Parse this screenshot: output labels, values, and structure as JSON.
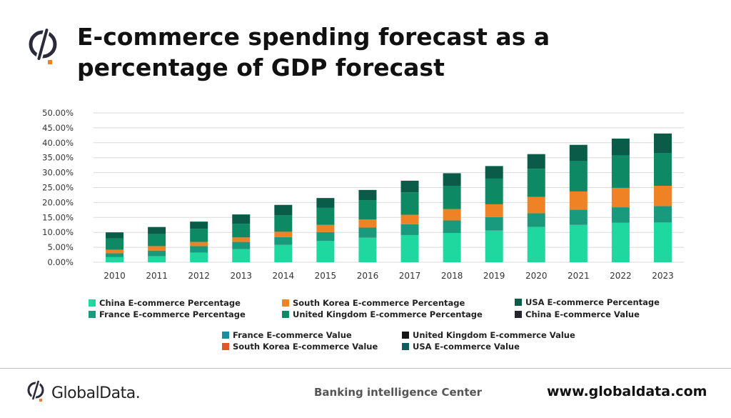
{
  "title": "E-commerce spending forecast as a percentage of GDP forecast",
  "colors": {
    "china_pct": "#1ed8a0",
    "france_pct": "#1a9a7c",
    "south_korea_pct": "#f08226",
    "uk_pct": "#0d8a64",
    "usa_pct": "#0a5c48",
    "china_val": "#252530",
    "france_val": "#1a8e9e",
    "uk_val": "#161616",
    "south_korea_val": "#e0562a",
    "usa_val": "#105e5c",
    "grid": "#d9d9d9",
    "axis_text": "#333333"
  },
  "chart_data": {
    "type": "bar",
    "stacked": true,
    "categories": [
      "2010",
      "2011",
      "2012",
      "2013",
      "2014",
      "2015",
      "2016",
      "2017",
      "2018",
      "2019",
      "2020",
      "2021",
      "2022",
      "2023"
    ],
    "yticks": [
      "0.00%",
      "5.00%",
      "10.00%",
      "15.00%",
      "20.00%",
      "25.00%",
      "30.00%",
      "35.00%",
      "40.00%",
      "45.00%",
      "50.00%"
    ],
    "ylim": [
      0,
      50
    ],
    "grid": true,
    "legend_position": "bottom",
    "series": [
      {
        "name": "China E-commerce Percentage",
        "color_key": "china_pct",
        "values": [
          1.7,
          2.0,
          3.2,
          4.4,
          5.8,
          7.1,
          8.2,
          9.1,
          9.8,
          10.6,
          11.8,
          12.5,
          13.2,
          13.3
        ]
      },
      {
        "name": "France E-commerce Percentage",
        "color_key": "france_pct",
        "values": [
          1.3,
          1.9,
          2.2,
          2.4,
          2.6,
          3.0,
          3.4,
          3.6,
          4.2,
          4.5,
          4.6,
          5.1,
          5.2,
          5.5
        ]
      },
      {
        "name": "South Korea E-commerce Percentage",
        "color_key": "south_korea_pct",
        "values": [
          1.2,
          1.5,
          1.4,
          1.5,
          1.8,
          2.4,
          2.7,
          3.2,
          3.8,
          4.3,
          5.5,
          6.1,
          6.5,
          6.8
        ]
      },
      {
        "name": "United Kingdom E-commerce Percentage",
        "color_key": "uk_pct",
        "values": [
          3.8,
          4.0,
          4.4,
          4.6,
          5.5,
          5.7,
          6.5,
          7.5,
          7.8,
          8.6,
          9.4,
          10.1,
          10.8,
          11.0
        ]
      },
      {
        "name": "USA E-commerce Percentage",
        "color_key": "usa_pct",
        "values": [
          2.0,
          2.4,
          2.4,
          3.1,
          3.5,
          3.3,
          3.4,
          3.9,
          4.2,
          4.2,
          4.9,
          5.5,
          5.7,
          6.5
        ]
      }
    ],
    "legend": [
      {
        "name": "China E-commerce Percentage",
        "color_key": "china_pct"
      },
      {
        "name": "South Korea E-commerce Percentage",
        "color_key": "south_korea_pct"
      },
      {
        "name": "USA E-commerce Percentage",
        "color_key": "usa_pct"
      },
      {
        "name": "France E-commerce Percentage",
        "color_key": "france_pct"
      },
      {
        "name": "United Kingdom E-commerce Percentage",
        "color_key": "uk_pct"
      },
      {
        "name": "China E-commerce Value",
        "color_key": "china_val"
      },
      {
        "name": "France E-commerce Value",
        "color_key": "france_val"
      },
      {
        "name": "United Kingdom E-commerce Value",
        "color_key": "uk_val"
      },
      {
        "name": "South Korea E-commerce Value",
        "color_key": "south_korea_val"
      },
      {
        "name": "USA E-commerce Value",
        "color_key": "usa_val"
      }
    ]
  },
  "footer": {
    "brand_name": "GlobalData.",
    "center_text": "Banking intelligence Center",
    "url": "www.globaldata.com"
  }
}
